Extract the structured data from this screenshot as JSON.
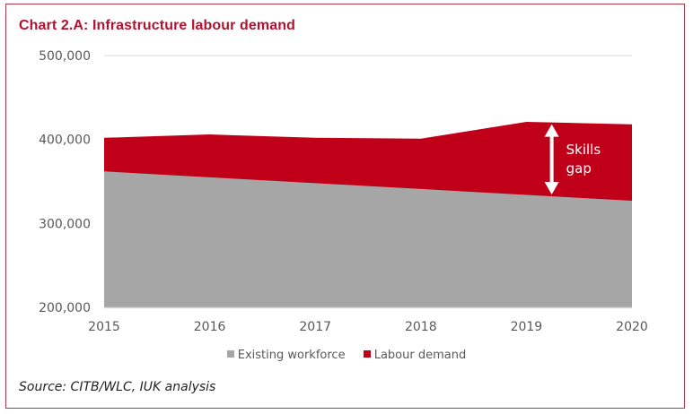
{
  "chart_data": {
    "type": "area",
    "stacked": false,
    "title": "Chart 2.A: Infrastructure labour demand",
    "xlabel": "",
    "ylabel": "",
    "categories": [
      "2015",
      "2016",
      "2017",
      "2018",
      "2019",
      "2020"
    ],
    "series": [
      {
        "name": "Labour demand",
        "color": "#c00018",
        "values": [
          402000,
          406000,
          402000,
          401000,
          421000,
          418000
        ]
      },
      {
        "name": "Existing workforce",
        "color": "#a6a6a6",
        "values": [
          362000,
          355000,
          348000,
          341000,
          334000,
          327000
        ]
      }
    ],
    "ylim": [
      200000,
      500000
    ],
    "yticks": [
      200000,
      300000,
      400000,
      500000
    ],
    "ytick_labels": [
      "200,000",
      "300,000",
      "400,000",
      "500,000"
    ],
    "grid": true,
    "legend": {
      "position": "bottom",
      "entries": [
        "Existing workforce",
        "Labour demand"
      ]
    },
    "annotation": {
      "text_line1": "Skills",
      "text_line2": "gap",
      "type": "double-arrow",
      "x_between": [
        "2019",
        "2020"
      ]
    }
  },
  "source": "Source: CITB/WLC, IUK analysis",
  "colors": {
    "border": "#b0384a",
    "title": "#b3122e",
    "demand": "#c00018",
    "workforce": "#a6a6a6",
    "grid": "#d9d9d9"
  }
}
